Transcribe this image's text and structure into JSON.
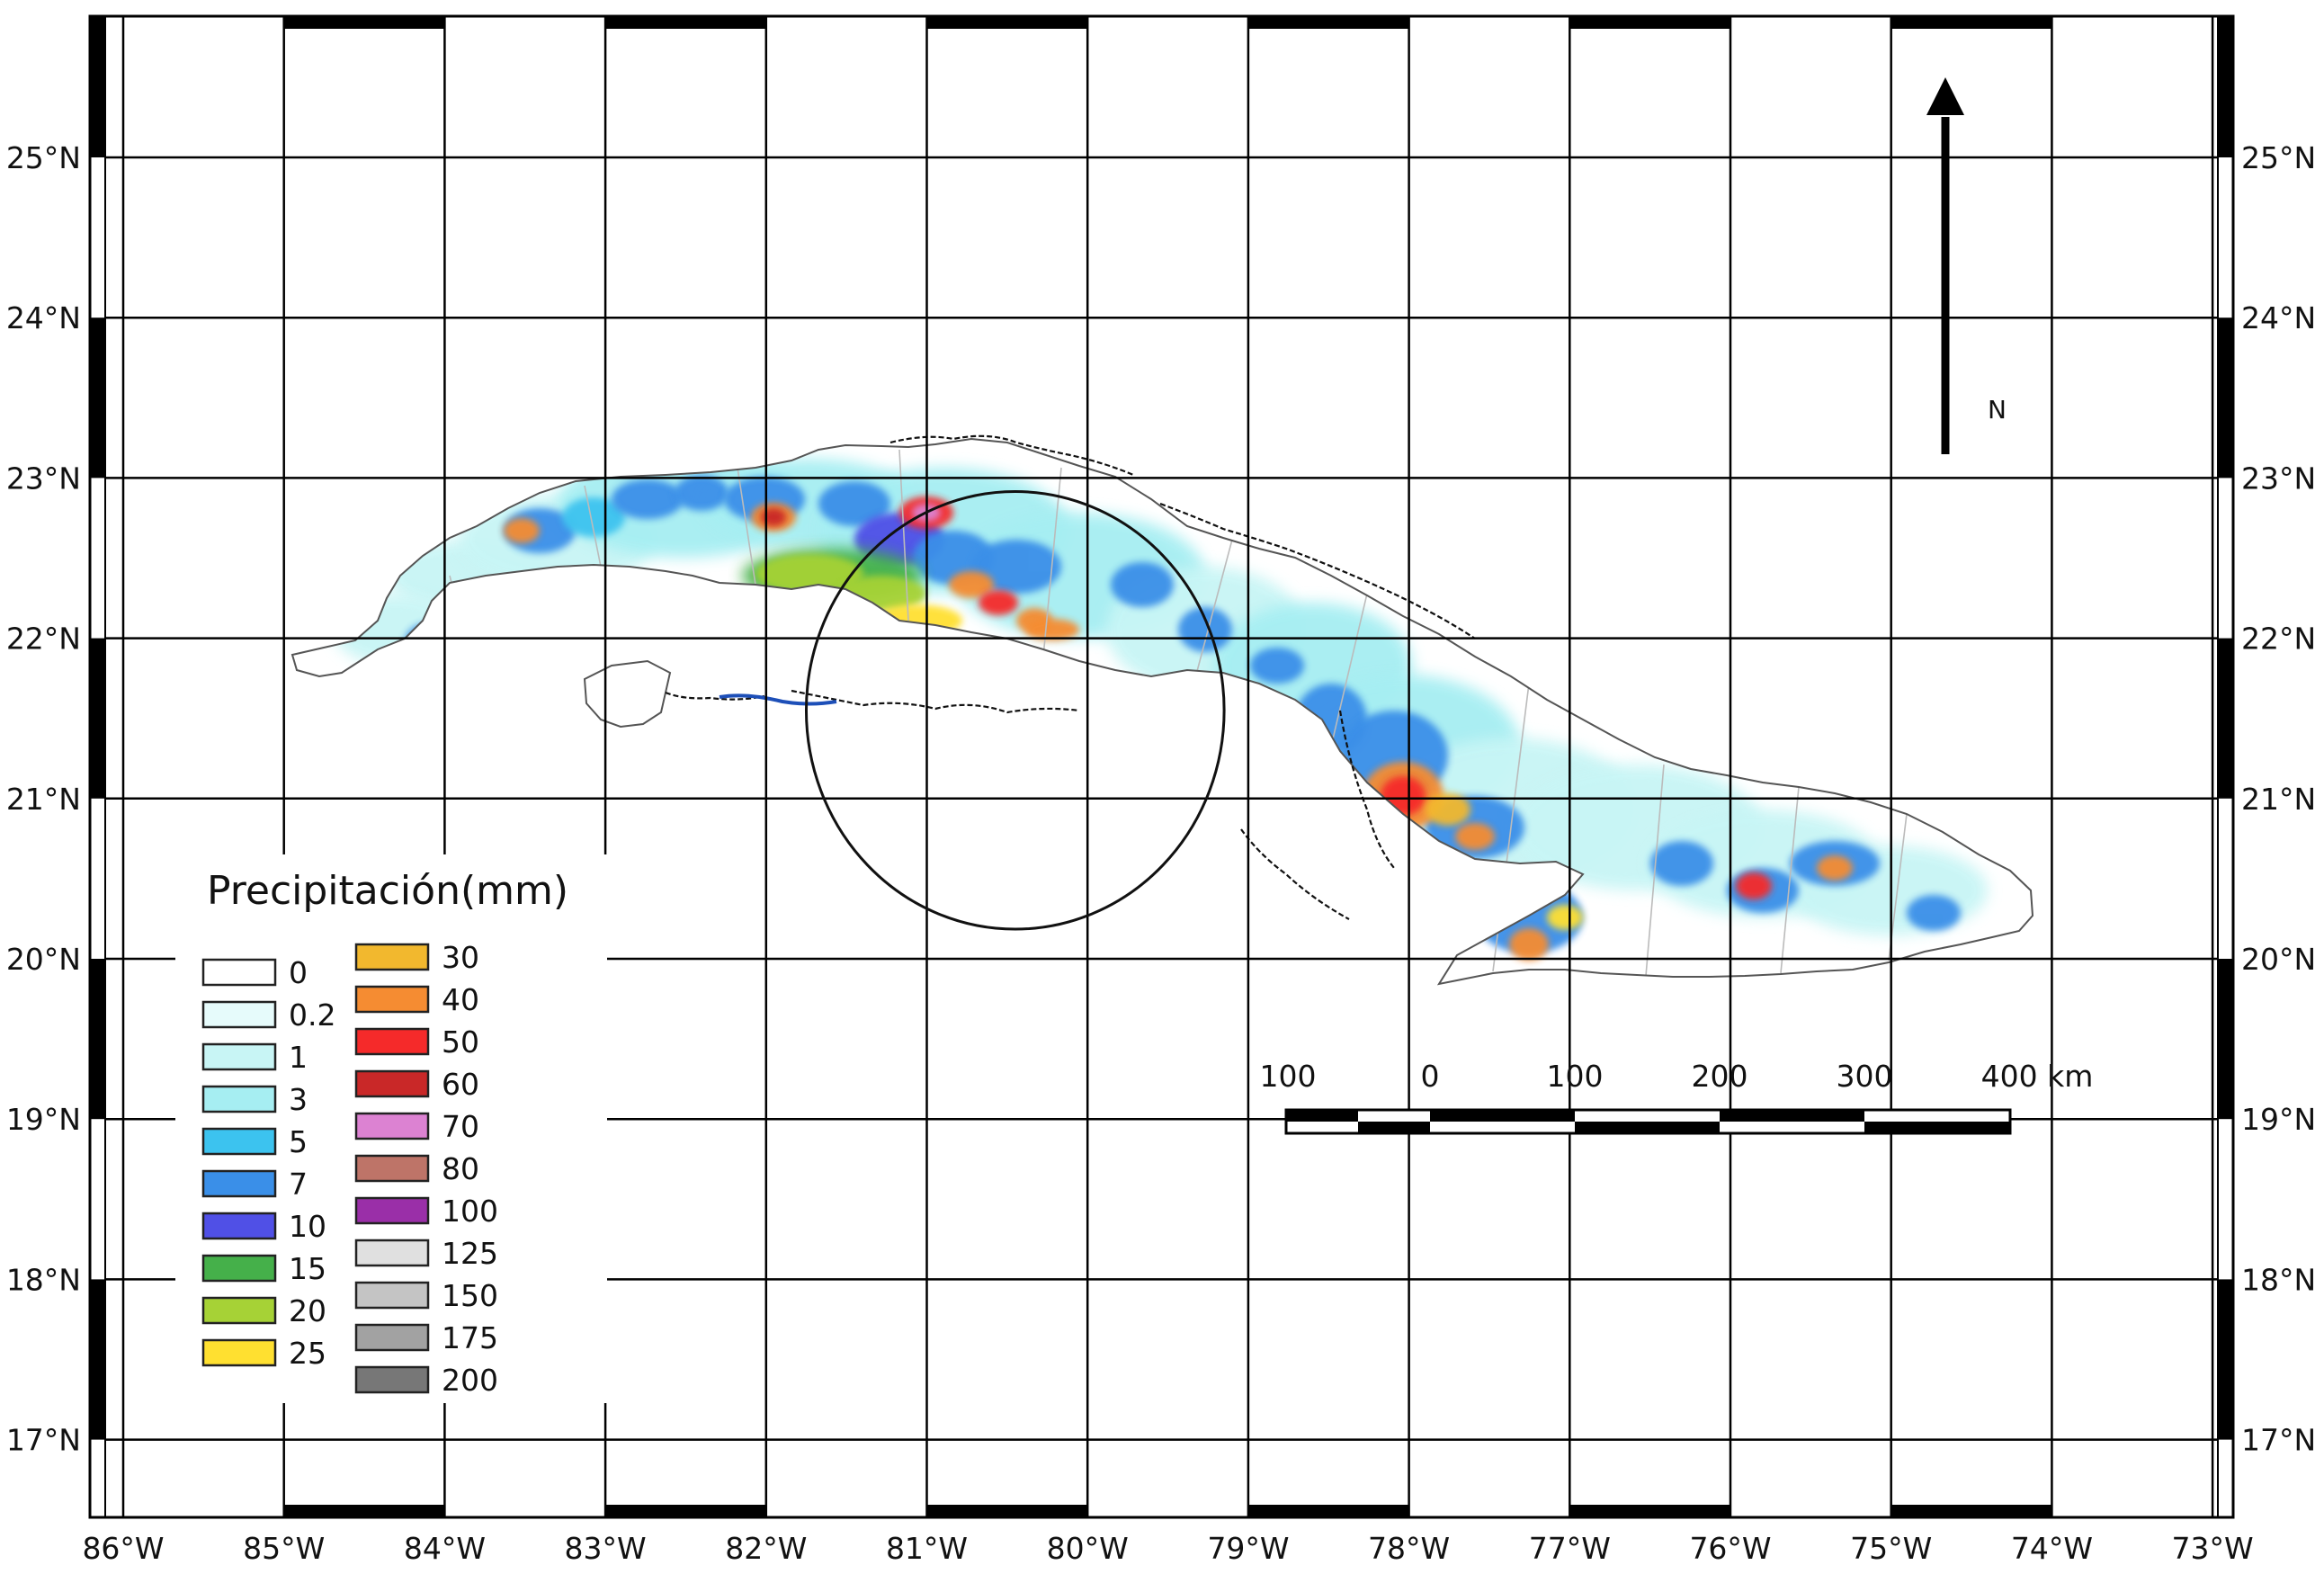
{
  "map": {
    "region": "Cuba",
    "lon_range": [
      -86.2,
      -72.9
    ],
    "lat_range": [
      16.5,
      25.9
    ],
    "lon_ticks": [
      {
        "value": -86,
        "label": "86°W"
      },
      {
        "value": -85,
        "label": "85°W"
      },
      {
        "value": -84,
        "label": "84°W"
      },
      {
        "value": -83,
        "label": "83°W"
      },
      {
        "value": -82,
        "label": "82°W"
      },
      {
        "value": -81,
        "label": "81°W"
      },
      {
        "value": -80,
        "label": "80°W"
      },
      {
        "value": -79,
        "label": "79°W"
      },
      {
        "value": -78,
        "label": "78°W"
      },
      {
        "value": -77,
        "label": "77°W"
      },
      {
        "value": -76,
        "label": "76°W"
      },
      {
        "value": -75,
        "label": "75°W"
      },
      {
        "value": -74,
        "label": "74°W"
      },
      {
        "value": -73,
        "label": "73°W"
      }
    ],
    "lat_ticks": [
      {
        "value": 25,
        "label": "25°N"
      },
      {
        "value": 24,
        "label": "24°N"
      },
      {
        "value": 23,
        "label": "23°N"
      },
      {
        "value": 22,
        "label": "22°N"
      },
      {
        "value": 21,
        "label": "21°N"
      },
      {
        "value": 20,
        "label": "20°N"
      },
      {
        "value": 19,
        "label": "19°N"
      },
      {
        "value": 18,
        "label": "18°N"
      },
      {
        "value": 17,
        "label": "17°N"
      }
    ],
    "grid": true
  },
  "legend": {
    "title": "Precipitación(mm)",
    "col1": [
      {
        "label": "0",
        "color": "#ffffff"
      },
      {
        "label": "0.2",
        "color": "#e6fbfb"
      },
      {
        "label": "1",
        "color": "#c8f5f5"
      },
      {
        "label": "3",
        "color": "#a6eef2"
      },
      {
        "label": "5",
        "color": "#3cc3ef"
      },
      {
        "label": "7",
        "color": "#3a8fe8"
      },
      {
        "label": "10",
        "color": "#5050e6"
      },
      {
        "label": "15",
        "color": "#45b04a"
      },
      {
        "label": "20",
        "color": "#a6d236"
      },
      {
        "label": "25",
        "color": "#ffe030"
      }
    ],
    "col2": [
      {
        "label": "30",
        "color": "#f2b82e"
      },
      {
        "label": "40",
        "color": "#f58c32"
      },
      {
        "label": "50",
        "color": "#f52a2a"
      },
      {
        "label": "60",
        "color": "#c92828"
      },
      {
        "label": "70",
        "color": "#dc82d2"
      },
      {
        "label": "80",
        "color": "#be7468"
      },
      {
        "label": "100",
        "color": "#9a2fa8"
      },
      {
        "label": "125",
        "color": "#e0e0e0"
      },
      {
        "label": "150",
        "color": "#c4c4c4"
      },
      {
        "label": "175",
        "color": "#a2a2a2"
      },
      {
        "label": "200",
        "color": "#777777"
      }
    ]
  },
  "scale_bar": {
    "labels": [
      "100",
      "0",
      "100",
      "200",
      "300",
      "400 km"
    ]
  },
  "north_arrow": {
    "label": "N"
  },
  "radar_circle": {
    "center_lon": -80.45,
    "center_lat": 21.55,
    "radius_deg": 1.3
  }
}
